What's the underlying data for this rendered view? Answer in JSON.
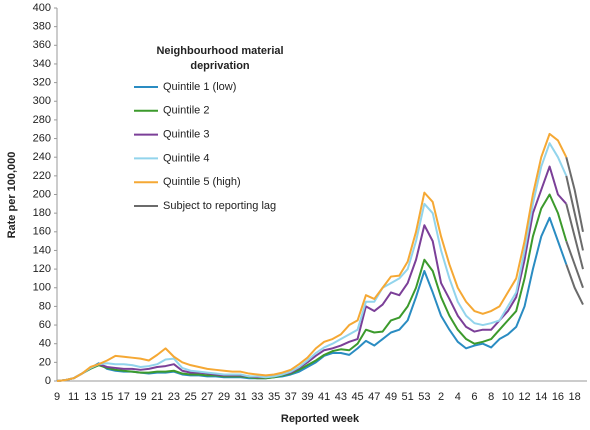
{
  "chart_data": {
    "type": "line",
    "x_label": "Reported week",
    "y_label": "Rate per 100,000",
    "legend_title": "Neighbourhood material deprivation",
    "categories": [
      "9",
      null,
      "11",
      null,
      "13",
      null,
      "15",
      null,
      "17",
      null,
      "19",
      null,
      "21",
      null,
      "23",
      null,
      "25",
      null,
      "27",
      null,
      "29",
      null,
      "31",
      null,
      "33",
      null,
      "35",
      null,
      "37",
      null,
      "39",
      null,
      "41",
      null,
      "43",
      null,
      "45",
      null,
      "47",
      null,
      "49",
      null,
      "51",
      null,
      "53",
      null,
      "2",
      null,
      "4",
      null,
      "6",
      null,
      "8",
      null,
      "10",
      null,
      "12",
      null,
      "14",
      null,
      "16",
      null,
      "18",
      null
    ],
    "series": [
      {
        "name": "Quintile 1 (low)",
        "color": "#2a8cc2",
        "values": [
          0,
          1,
          3,
          8,
          14,
          19,
          13,
          11,
          10,
          10,
          9,
          8,
          9,
          9,
          10,
          7,
          6,
          6,
          5,
          5,
          4,
          4,
          4,
          3,
          3,
          3,
          4,
          5,
          7,
          10,
          15,
          20,
          27,
          30,
          30,
          28,
          35,
          43,
          38,
          45,
          52,
          55,
          65,
          90,
          118,
          95,
          70,
          55,
          42,
          35,
          38,
          40,
          36,
          45,
          50,
          58,
          80,
          120,
          155,
          175,
          150,
          125,
          100,
          82
        ]
      },
      {
        "name": "Quintile 2",
        "color": "#3c9a2c",
        "values": [
          0,
          1,
          3,
          8,
          13,
          17,
          14,
          12,
          11,
          10,
          9,
          9,
          10,
          10,
          11,
          8,
          7,
          7,
          6,
          6,
          5,
          5,
          5,
          4,
          3,
          3,
          4,
          6,
          8,
          12,
          17,
          22,
          28,
          32,
          34,
          33,
          40,
          55,
          52,
          53,
          65,
          68,
          80,
          100,
          130,
          118,
          90,
          70,
          55,
          45,
          40,
          42,
          45,
          55,
          65,
          75,
          110,
          155,
          185,
          200,
          180,
          150,
          125,
          100
        ]
      },
      {
        "name": "Quintile 3",
        "color": "#7b3f98",
        "values": [
          0,
          1,
          3,
          8,
          14,
          18,
          15,
          14,
          13,
          13,
          12,
          13,
          15,
          16,
          18,
          11,
          9,
          9,
          8,
          7,
          6,
          6,
          6,
          5,
          4,
          4,
          5,
          7,
          9,
          14,
          20,
          27,
          33,
          35,
          38,
          42,
          45,
          80,
          75,
          82,
          95,
          92,
          105,
          130,
          167,
          150,
          105,
          88,
          70,
          58,
          53,
          55,
          55,
          65,
          75,
          90,
          130,
          180,
          205,
          230,
          200,
          190,
          155,
          120
        ]
      },
      {
        "name": "Quintile 4",
        "color": "#92d4ec",
        "values": [
          0,
          1,
          3,
          8,
          14,
          18,
          19,
          18,
          18,
          17,
          15,
          16,
          18,
          23,
          24,
          14,
          11,
          10,
          9,
          8,
          7,
          7,
          7,
          5,
          5,
          4,
          5,
          7,
          10,
          15,
          22,
          30,
          36,
          40,
          45,
          50,
          55,
          85,
          85,
          100,
          105,
          110,
          120,
          150,
          190,
          180,
          140,
          110,
          85,
          70,
          62,
          60,
          62,
          65,
          80,
          95,
          140,
          190,
          230,
          255,
          240,
          220,
          180,
          140
        ]
      },
      {
        "name": "Quintile 5 (high)",
        "color": "#f5a834",
        "values": [
          0,
          1,
          3,
          8,
          15,
          18,
          22,
          27,
          26,
          25,
          24,
          22,
          28,
          35,
          26,
          20,
          17,
          15,
          13,
          12,
          11,
          10,
          10,
          8,
          7,
          6,
          7,
          9,
          12,
          18,
          25,
          35,
          42,
          45,
          50,
          60,
          65,
          92,
          88,
          100,
          112,
          113,
          128,
          160,
          202,
          192,
          155,
          125,
          100,
          85,
          75,
          72,
          75,
          80,
          95,
          110,
          150,
          200,
          240,
          265,
          258,
          240,
          205,
          160
        ]
      }
    ],
    "reporting_lag": {
      "name": "Subject to reporting lag",
      "color": "#6b6b6b",
      "start_index": 61
    },
    "ylim": [
      0,
      400
    ],
    "yticks": [
      0,
      20,
      40,
      60,
      80,
      100,
      120,
      140,
      160,
      180,
      200,
      220,
      240,
      260,
      280,
      300,
      320,
      340,
      360,
      380,
      400
    ],
    "grid": false
  }
}
